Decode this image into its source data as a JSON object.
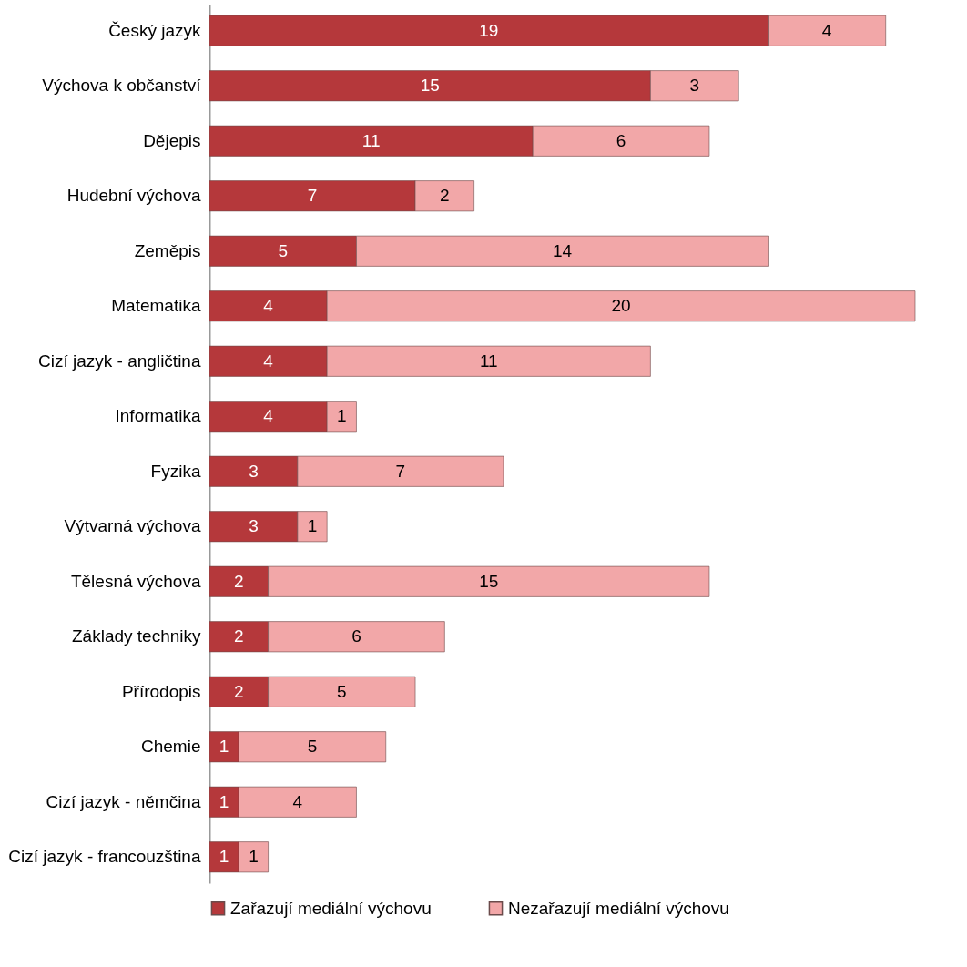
{
  "chart_data": {
    "type": "bar",
    "orientation": "horizontal",
    "stacked": true,
    "data_labels": true,
    "legend": "bottom",
    "categories": [
      "Český jazyk",
      "Výchova k občanství",
      "Dějepis",
      "Hudební výchova",
      "Zeměpis",
      "Matematika",
      "Cizí jazyk - angličtina",
      "Informatika",
      "Fyzika",
      "Výtvarná výchova",
      "Tělesná výchova",
      "Základy techniky",
      "Přírodopis",
      "Chemie",
      "Cizí jazyk - němčina",
      "Cizí jazyk - francouzština"
    ],
    "series": [
      {
        "name": "Zařazují mediální výchovu",
        "color": "#b5383b",
        "values": [
          19,
          15,
          11,
          7,
          5,
          4,
          4,
          4,
          3,
          3,
          2,
          2,
          2,
          1,
          1,
          1
        ]
      },
      {
        "name": "Nezařazují mediální výchovu",
        "color": "#f2a7a8",
        "values": [
          4,
          3,
          6,
          2,
          14,
          20,
          11,
          1,
          7,
          1,
          15,
          6,
          5,
          5,
          4,
          1
        ]
      }
    ]
  }
}
